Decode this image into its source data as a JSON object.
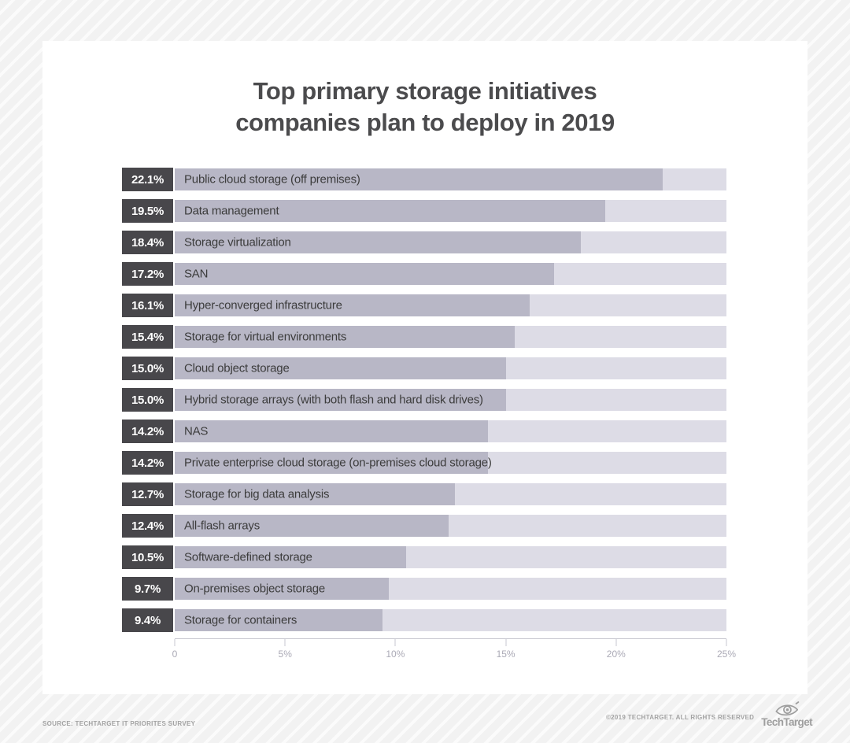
{
  "title": {
    "line1": "Top primary storage initiatives",
    "line2": "companies plan to deploy in 2019"
  },
  "chart_data": {
    "type": "bar",
    "orientation": "horizontal",
    "title": "Top primary storage initiatives companies plan to deploy in 2019",
    "categories": [
      "Public cloud storage (off premises)",
      "Data management",
      "Storage virtualization",
      "SAN",
      "Hyper-converged infrastructure",
      "Storage for virtual environments",
      "Cloud object storage",
      "Hybrid storage arrays (with both flash and hard disk drives)",
      "NAS",
      "Private enterprise cloud storage (on-premises cloud storage)",
      "Storage for big data analysis",
      "All-flash arrays",
      "Software-defined storage",
      "On-premises object storage",
      "Storage for containers"
    ],
    "values": [
      22.1,
      19.5,
      18.4,
      17.2,
      16.1,
      15.4,
      15.0,
      15.0,
      14.2,
      14.2,
      12.7,
      12.4,
      10.5,
      9.7,
      9.4
    ],
    "value_labels": [
      "22.1%",
      "19.5%",
      "18.4%",
      "17.2%",
      "16.1%",
      "15.4%",
      "15.0%",
      "15.0%",
      "14.2%",
      "14.2%",
      "12.7%",
      "12.4%",
      "10.5%",
      "9.7%",
      "9.4%"
    ],
    "xlim": [
      0,
      25
    ],
    "x_ticks": [
      "0",
      "5%",
      "10%",
      "15%",
      "20%",
      "25%"
    ],
    "grid": false,
    "legend": false,
    "colors": {
      "bar_fill": "#b8b7c6",
      "bar_track": "#dddce6",
      "value_box": "#48474b",
      "value_text": "#ffffff",
      "label_text": "#3c3c3c",
      "axis": "#c7c7d0",
      "tick_label": "#abaab6",
      "title": "#4b4b4d"
    }
  },
  "footer": {
    "source": "SOURCE: TECHTARGET IT PRIORITES SURVEY",
    "copyright": "©2019 TECHTARGET. ALL RIGHTS RESERVED",
    "brand": "TechTarget"
  }
}
